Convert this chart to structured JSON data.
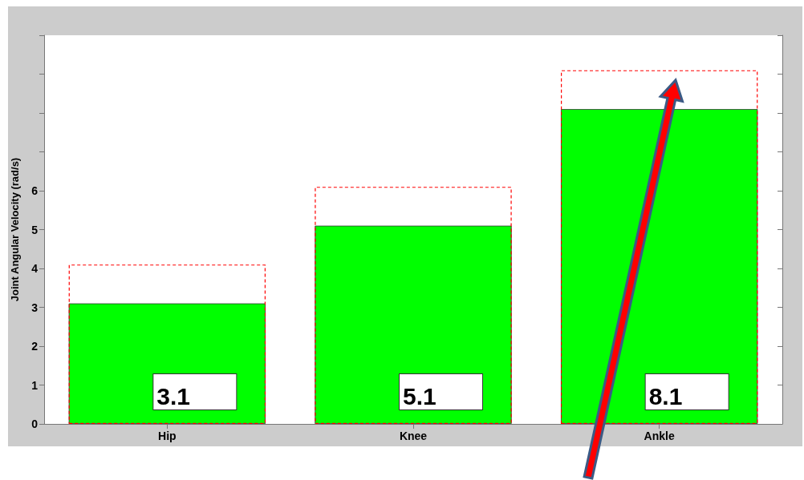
{
  "chart_data": {
    "type": "bar",
    "ylabel": "Joint Angular Velocity (rad/s)",
    "categories": [
      "Hip",
      "Knee",
      "Ankle"
    ],
    "ylim": [
      0,
      10
    ],
    "yticks": [
      0,
      1,
      2,
      3,
      4,
      5,
      6,
      {
        "value": 7,
        "label": null
      },
      {
        "value": 8,
        "label": null
      },
      {
        "value": 9,
        "label": null
      },
      {
        "value": 10,
        "label": null
      }
    ],
    "grid": false,
    "series": [
      {
        "color": "#00ff00",
        "values": [
          3.1,
          5.1,
          8.1
        ],
        "value_labels": [
          "3.1",
          "5.1",
          "8.1"
        ]
      },
      {
        "color": "#ff0000",
        "values": [
          4.1,
          6.1,
          9.1
        ],
        "line_style": "dashed"
      }
    ]
  }
}
